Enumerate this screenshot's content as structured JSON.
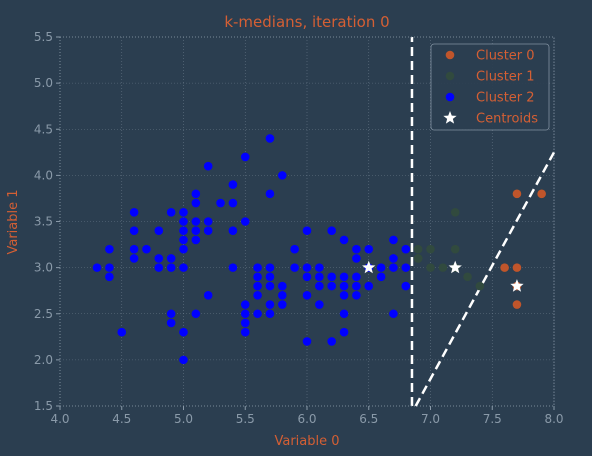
{
  "chart_data": {
    "type": "scatter",
    "title": "k-medians, iteration 0",
    "xlabel": "Variable 0",
    "ylabel": "Variable 1",
    "xlim": [
      4.0,
      8.0
    ],
    "ylim": [
      1.5,
      5.5
    ],
    "x_ticks": [
      "4.0",
      "4.5",
      "5.0",
      "5.5",
      "6.0",
      "6.5",
      "7.0",
      "7.5",
      "8.0"
    ],
    "y_ticks": [
      "1.5",
      "2.0",
      "2.5",
      "3.0",
      "3.5",
      "4.0",
      "4.5",
      "5.0",
      "5.5"
    ],
    "grid": true,
    "legend_position": "top-right",
    "colors": {
      "background": "#2b3e50",
      "text": "#d45f34",
      "ticks": "#8a9aa9",
      "frame": "#8a9aa9",
      "grid": "#8a9aa9",
      "boundary": "#ffffff",
      "legend_bg": "#2b3e50",
      "legend_edge": "#8a9aa9"
    },
    "series": [
      {
        "name": "Cluster 0",
        "color": "#c0552b",
        "marker": "circle",
        "points": [
          [
            7.9,
            3.8
          ],
          [
            7.7,
            3.8
          ],
          [
            7.6,
            3.0
          ],
          [
            7.7,
            3.0
          ],
          [
            7.7,
            2.8
          ],
          [
            7.7,
            2.6
          ]
        ]
      },
      {
        "name": "Cluster 1",
        "color": "#314a3e",
        "marker": "circle",
        "points": [
          [
            6.9,
            3.1
          ],
          [
            6.9,
            3.2
          ],
          [
            7.0,
            3.2
          ],
          [
            7.1,
            3.0
          ],
          [
            7.2,
            3.6
          ],
          [
            7.2,
            3.2
          ],
          [
            7.2,
            3.0
          ],
          [
            7.3,
            2.9
          ],
          [
            7.4,
            2.8
          ],
          [
            7.6,
            3.0
          ],
          [
            7.7,
            3.8
          ],
          [
            7.9,
            3.8
          ],
          [
            6.9,
            3.1
          ],
          [
            7.0,
            3.0
          ]
        ]
      },
      {
        "name": "Cluster 2",
        "color": "#0000ff",
        "marker": "circle",
        "points": [
          [
            4.3,
            3.0
          ],
          [
            4.4,
            2.9
          ],
          [
            4.4,
            3.0
          ],
          [
            4.4,
            3.2
          ],
          [
            4.5,
            2.3
          ],
          [
            4.6,
            3.1
          ],
          [
            4.6,
            3.2
          ],
          [
            4.6,
            3.4
          ],
          [
            4.6,
            3.6
          ],
          [
            4.7,
            3.2
          ],
          [
            4.8,
            3.0
          ],
          [
            4.8,
            3.1
          ],
          [
            4.8,
            3.4
          ],
          [
            4.9,
            2.4
          ],
          [
            4.9,
            2.5
          ],
          [
            4.9,
            3.0
          ],
          [
            4.9,
            3.1
          ],
          [
            4.9,
            3.6
          ],
          [
            5.0,
            2.0
          ],
          [
            5.0,
            2.3
          ],
          [
            5.0,
            3.0
          ],
          [
            5.0,
            3.2
          ],
          [
            5.0,
            3.3
          ],
          [
            5.0,
            3.4
          ],
          [
            5.0,
            3.5
          ],
          [
            5.0,
            3.6
          ],
          [
            5.1,
            2.5
          ],
          [
            5.1,
            3.3
          ],
          [
            5.1,
            3.4
          ],
          [
            5.1,
            3.5
          ],
          [
            5.1,
            3.7
          ],
          [
            5.1,
            3.8
          ],
          [
            5.2,
            2.7
          ],
          [
            5.2,
            3.4
          ],
          [
            5.2,
            3.5
          ],
          [
            5.2,
            4.1
          ],
          [
            5.3,
            3.7
          ],
          [
            5.4,
            3.0
          ],
          [
            5.4,
            3.4
          ],
          [
            5.4,
            3.7
          ],
          [
            5.4,
            3.9
          ],
          [
            5.5,
            2.3
          ],
          [
            5.5,
            2.4
          ],
          [
            5.5,
            2.5
          ],
          [
            5.5,
            2.6
          ],
          [
            5.5,
            3.5
          ],
          [
            5.5,
            4.2
          ],
          [
            5.6,
            2.5
          ],
          [
            5.6,
            2.7
          ],
          [
            5.6,
            2.8
          ],
          [
            5.6,
            2.9
          ],
          [
            5.6,
            3.0
          ],
          [
            5.7,
            2.5
          ],
          [
            5.7,
            2.6
          ],
          [
            5.7,
            2.8
          ],
          [
            5.7,
            2.9
          ],
          [
            5.7,
            3.0
          ],
          [
            5.7,
            3.8
          ],
          [
            5.7,
            4.4
          ],
          [
            5.8,
            2.6
          ],
          [
            5.8,
            2.7
          ],
          [
            5.8,
            2.8
          ],
          [
            5.8,
            4.0
          ],
          [
            5.9,
            3.0
          ],
          [
            5.9,
            3.2
          ],
          [
            6.0,
            2.2
          ],
          [
            6.0,
            2.7
          ],
          [
            6.0,
            2.9
          ],
          [
            6.0,
            3.0
          ],
          [
            6.0,
            3.4
          ],
          [
            6.1,
            2.6
          ],
          [
            6.1,
            2.8
          ],
          [
            6.1,
            2.9
          ],
          [
            6.1,
            3.0
          ],
          [
            6.2,
            2.2
          ],
          [
            6.2,
            2.8
          ],
          [
            6.2,
            2.9
          ],
          [
            6.2,
            3.4
          ],
          [
            6.3,
            2.3
          ],
          [
            6.3,
            2.5
          ],
          [
            6.3,
            2.7
          ],
          [
            6.3,
            2.8
          ],
          [
            6.3,
            2.9
          ],
          [
            6.3,
            3.3
          ],
          [
            6.4,
            2.7
          ],
          [
            6.4,
            2.8
          ],
          [
            6.4,
            2.9
          ],
          [
            6.4,
            3.1
          ],
          [
            6.4,
            3.2
          ],
          [
            6.5,
            2.8
          ],
          [
            6.5,
            3.0
          ],
          [
            6.5,
            3.2
          ],
          [
            6.6,
            2.9
          ],
          [
            6.6,
            3.0
          ],
          [
            6.7,
            2.5
          ],
          [
            6.7,
            3.0
          ],
          [
            6.7,
            3.1
          ],
          [
            6.7,
            3.3
          ],
          [
            6.8,
            2.8
          ],
          [
            6.8,
            3.0
          ],
          [
            6.8,
            3.2
          ]
        ]
      },
      {
        "name": "Centroids",
        "color": "#ffffff",
        "marker": "star",
        "points": [
          [
            6.5,
            3.0
          ],
          [
            7.2,
            3.0
          ],
          [
            7.7,
            2.8
          ]
        ]
      }
    ],
    "boundaries": [
      {
        "style": "dashed",
        "points": [
          [
            6.85,
            1.5
          ],
          [
            6.85,
            5.5
          ]
        ]
      },
      {
        "style": "dashed",
        "points": [
          [
            6.88,
            1.5
          ],
          [
            8.0,
            4.25
          ]
        ]
      }
    ]
  }
}
